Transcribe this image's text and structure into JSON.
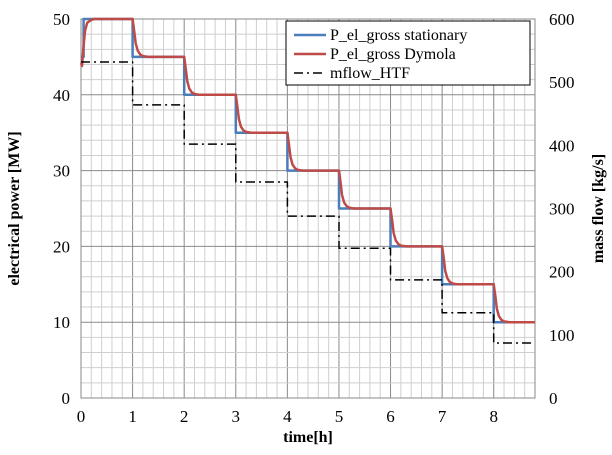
{
  "chart_data": {
    "type": "line",
    "xlabel": "time[h]",
    "ylabel": "electrical power [MW]",
    "y2label": "mass flow [kg/s]",
    "xlim": [
      0,
      8.8
    ],
    "ylim": [
      0,
      50
    ],
    "y2lim": [
      0,
      600
    ],
    "xticks": [
      "0",
      "1",
      "2",
      "3",
      "4",
      "5",
      "6",
      "7",
      "8"
    ],
    "yticks": [
      "0",
      "10",
      "20",
      "30",
      "40",
      "50"
    ],
    "y2ticks": [
      "0",
      "100",
      "200",
      "300",
      "400",
      "500",
      "600"
    ],
    "grid": true,
    "legend_position": "top-right",
    "series": [
      {
        "name": "P_el_gross stationary",
        "axis": "left",
        "color": "#4a7ebb",
        "style": "solid",
        "x": [
          0,
          0.05,
          0.05,
          1,
          1,
          2,
          2,
          3,
          3,
          4,
          4,
          5,
          5,
          6,
          6,
          7,
          7,
          8,
          8,
          8.8
        ],
        "y": [
          45,
          45,
          50,
          50,
          45,
          45,
          40,
          40,
          35,
          35,
          30,
          30,
          25,
          25,
          20,
          20,
          15,
          15,
          10,
          10
        ]
      },
      {
        "name": "P_el_gross Dymola",
        "axis": "left",
        "color": "#be4b48",
        "style": "solid",
        "x": [
          0,
          0.02,
          0.05,
          0.08,
          0.12,
          0.18,
          0.25,
          0.32,
          0.4,
          1.0,
          1.03,
          1.06,
          1.1,
          1.15,
          1.2,
          1.3,
          1.4,
          2.0,
          2.03,
          2.06,
          2.1,
          2.15,
          2.2,
          2.3,
          2.4,
          3.0,
          3.03,
          3.06,
          3.1,
          3.15,
          3.2,
          3.3,
          3.4,
          4.0,
          4.03,
          4.06,
          4.1,
          4.15,
          4.2,
          4.3,
          4.4,
          5.0,
          5.03,
          5.06,
          5.1,
          5.15,
          5.2,
          5.3,
          5.4,
          6.0,
          6.03,
          6.06,
          6.1,
          6.15,
          6.2,
          6.3,
          6.4,
          7.0,
          7.03,
          7.06,
          7.1,
          7.15,
          7.2,
          7.3,
          7.4,
          8.0,
          8.03,
          8.06,
          8.1,
          8.15,
          8.2,
          8.3,
          8.4,
          8.8
        ],
        "y": [
          44.2,
          43.8,
          46.5,
          48.5,
          49.5,
          49.8,
          50,
          50,
          50,
          50,
          48.5,
          46.8,
          45.8,
          45.3,
          45.1,
          45,
          45,
          45,
          43.5,
          41.8,
          40.8,
          40.3,
          40.1,
          40,
          40,
          40,
          38.5,
          36.8,
          35.8,
          35.3,
          35.1,
          35,
          35,
          35,
          33.5,
          31.8,
          30.8,
          30.3,
          30.1,
          30,
          30,
          30,
          28.5,
          26.8,
          25.8,
          25.3,
          25.1,
          25,
          25,
          25,
          23.5,
          21.8,
          20.8,
          20.3,
          20.1,
          20,
          20,
          20,
          18.5,
          16.8,
          15.8,
          15.3,
          15.1,
          15,
          15,
          15,
          13.5,
          11.8,
          10.8,
          10.3,
          10.1,
          10,
          10,
          10
        ]
      },
      {
        "name": "mflow_HTF",
        "axis": "right",
        "color": "#000000",
        "style": "dash-dot",
        "x": [
          0,
          1,
          1,
          2,
          2,
          3,
          3,
          4,
          4,
          5,
          5,
          6,
          6,
          7,
          7,
          8,
          8,
          8.8
        ],
        "y": [
          532,
          532,
          464,
          464,
          402,
          402,
          342,
          342,
          288,
          288,
          237,
          237,
          187,
          187,
          135,
          135,
          87,
          87
        ]
      }
    ]
  }
}
